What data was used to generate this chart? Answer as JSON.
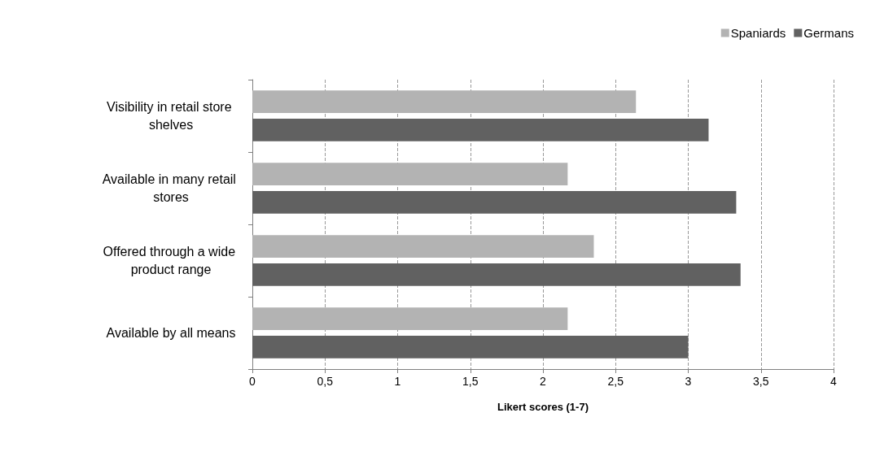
{
  "chart_data": {
    "type": "bar",
    "orientation": "horizontal",
    "xlabel": "Likert scores (1-7)",
    "categories": [
      "Visibility in retail store shelves",
      "Available in many retail stores",
      "Offered through a wide product range",
      "Available by all means"
    ],
    "series": [
      {
        "name": "Spaniards",
        "color": "#b3b3b3",
        "values": [
          2.64,
          2.17,
          2.35,
          2.17
        ]
      },
      {
        "name": "Germans",
        "color": "#616161",
        "values": [
          3.14,
          3.33,
          3.36,
          3.0
        ]
      }
    ],
    "xlim": [
      0,
      4
    ],
    "xticks": [
      0,
      {
        "value": 0.5,
        "label": "0,5"
      },
      1,
      {
        "value": 1.5,
        "label": "1,5"
      },
      2,
      {
        "value": 2.5,
        "label": "2,5"
      },
      3,
      {
        "value": 3.5,
        "label": "3,5"
      },
      4
    ],
    "grid": "x",
    "legend": "top right"
  }
}
